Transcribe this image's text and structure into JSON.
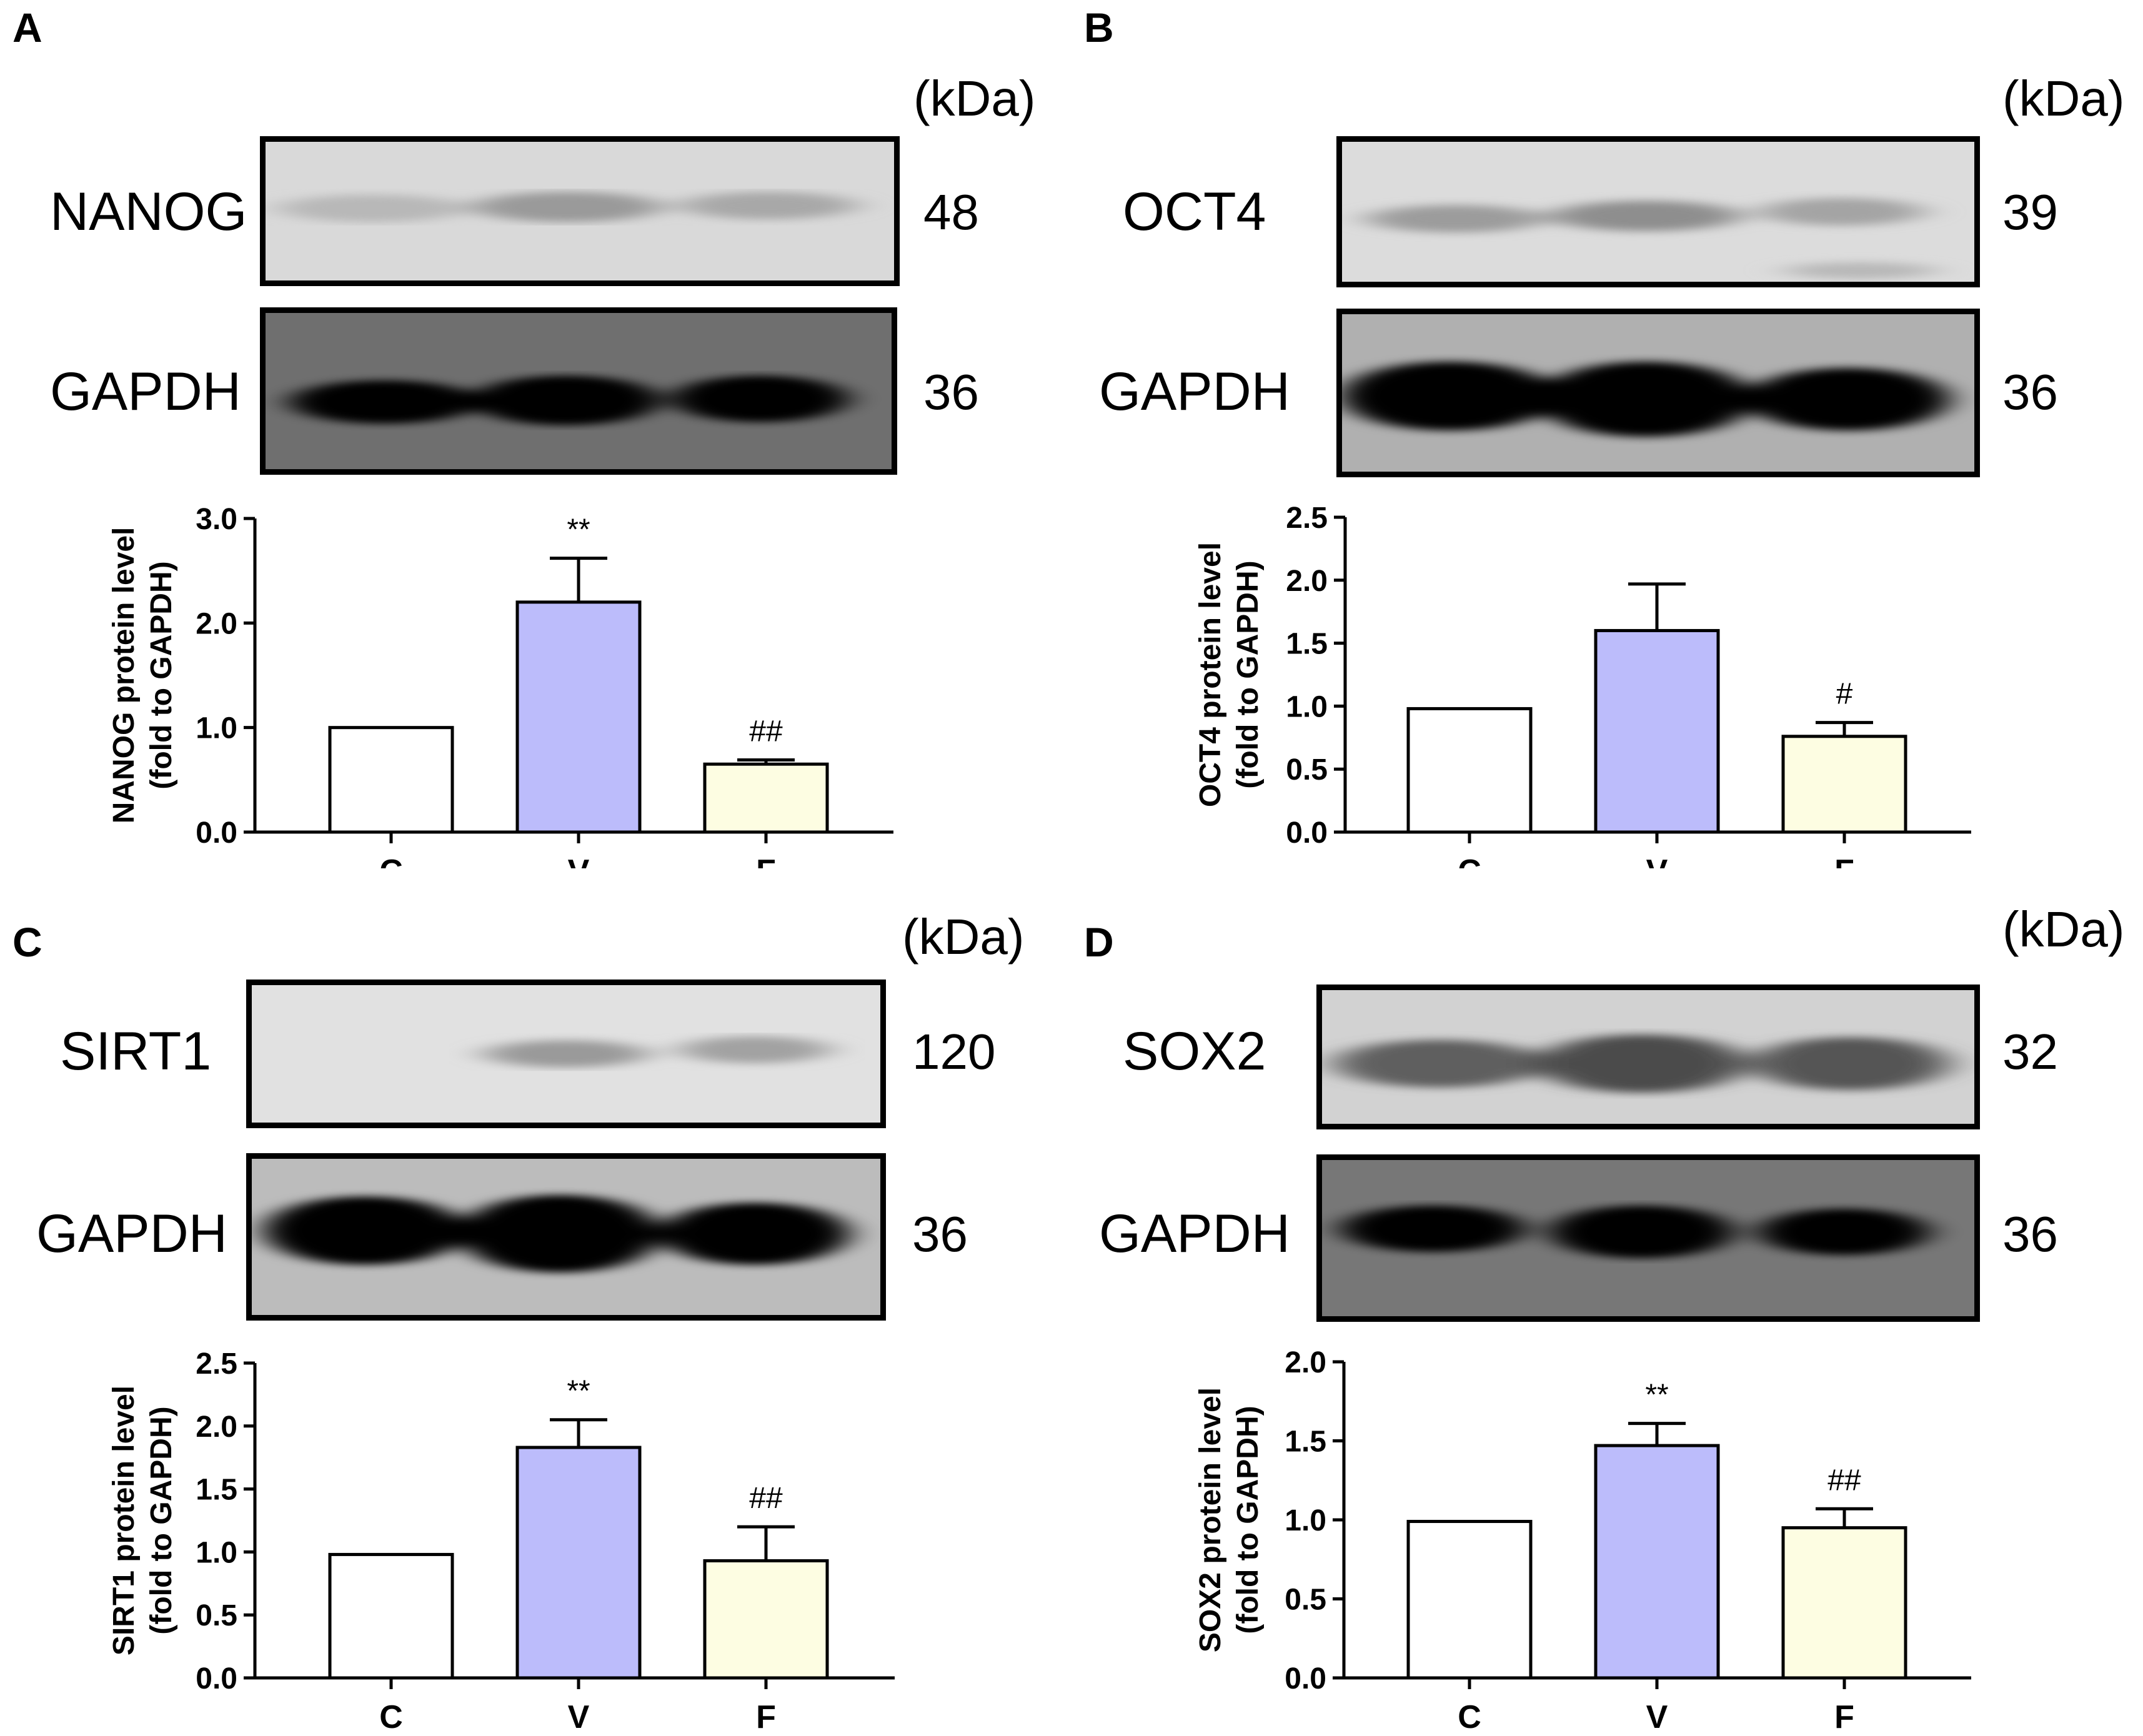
{
  "unit_label": "(kDa)",
  "colors": {
    "C": "#ffffff",
    "V": "#bcbcfb",
    "F": "#fdfde2",
    "bar_stroke": "#000000"
  },
  "panels": [
    {
      "label": "A",
      "target": {
        "name": "NANOG",
        "kda": "48"
      },
      "loading": {
        "name": "GAPDH",
        "kda": "36"
      }
    },
    {
      "label": "B",
      "target": {
        "name": "OCT4",
        "kda": "39"
      },
      "loading": {
        "name": "GAPDH",
        "kda": "36"
      }
    },
    {
      "label": "C",
      "target": {
        "name": "SIRT1",
        "kda": "120"
      },
      "loading": {
        "name": "GAPDH",
        "kda": "36"
      }
    },
    {
      "label": "D",
      "target": {
        "name": "SOX2",
        "kda": "32"
      },
      "loading": {
        "name": "GAPDH",
        "kda": "36"
      }
    }
  ],
  "chart_data": [
    {
      "type": "bar",
      "panel": "A",
      "categories": [
        "C",
        "V",
        "F"
      ],
      "values": [
        1.0,
        2.2,
        0.65
      ],
      "errors": [
        0,
        0.42,
        0.04
      ],
      "annotations": [
        "",
        "**",
        "##"
      ],
      "ylabel": "NANOG protein level",
      "ylabel2": "(fold to GAPDH)",
      "ylim": [
        0,
        3
      ],
      "yticks": [
        "0.0",
        "1.0",
        "2.0",
        "3.0"
      ],
      "ytick_values": [
        0,
        1,
        2,
        3
      ]
    },
    {
      "type": "bar",
      "panel": "B",
      "categories": [
        "C",
        "V",
        "F"
      ],
      "values": [
        0.98,
        1.6,
        0.76
      ],
      "errors": [
        0,
        0.37,
        0.11
      ],
      "annotations": [
        "",
        "",
        "#"
      ],
      "ylabel": "OCT4 protein level",
      "ylabel2": "(fold to GAPDH)",
      "ylim": [
        0,
        2.5
      ],
      "yticks": [
        "0.0",
        "0.5",
        "1.0",
        "1.5",
        "2.0",
        "2.5"
      ],
      "ytick_values": [
        0,
        0.5,
        1,
        1.5,
        2,
        2.5
      ]
    },
    {
      "type": "bar",
      "panel": "C",
      "categories": [
        "C",
        "V",
        "F"
      ],
      "values": [
        0.98,
        1.83,
        0.93
      ],
      "errors": [
        0,
        0.22,
        0.27
      ],
      "annotations": [
        "",
        "**",
        "##"
      ],
      "ylabel": "SIRT1 protein level",
      "ylabel2": "(fold to GAPDH)",
      "ylim": [
        0,
        2.5
      ],
      "yticks": [
        "0.0",
        "0.5",
        "1.0",
        "1.5",
        "2.0",
        "2.5"
      ],
      "ytick_values": [
        0,
        0.5,
        1,
        1.5,
        2,
        2.5
      ]
    },
    {
      "type": "bar",
      "panel": "D",
      "categories": [
        "C",
        "V",
        "F"
      ],
      "values": [
        0.99,
        1.47,
        0.95
      ],
      "errors": [
        0,
        0.14,
        0.12
      ],
      "annotations": [
        "",
        "**",
        "##"
      ],
      "ylabel": "SOX2 protein level",
      "ylabel2": "(fold to GAPDH)",
      "ylim": [
        0,
        2.0
      ],
      "yticks": [
        "0.0",
        "0.5",
        "1.0",
        "1.5",
        "2.0"
      ],
      "ytick_values": [
        0,
        0.5,
        1,
        1.5,
        2
      ]
    }
  ]
}
